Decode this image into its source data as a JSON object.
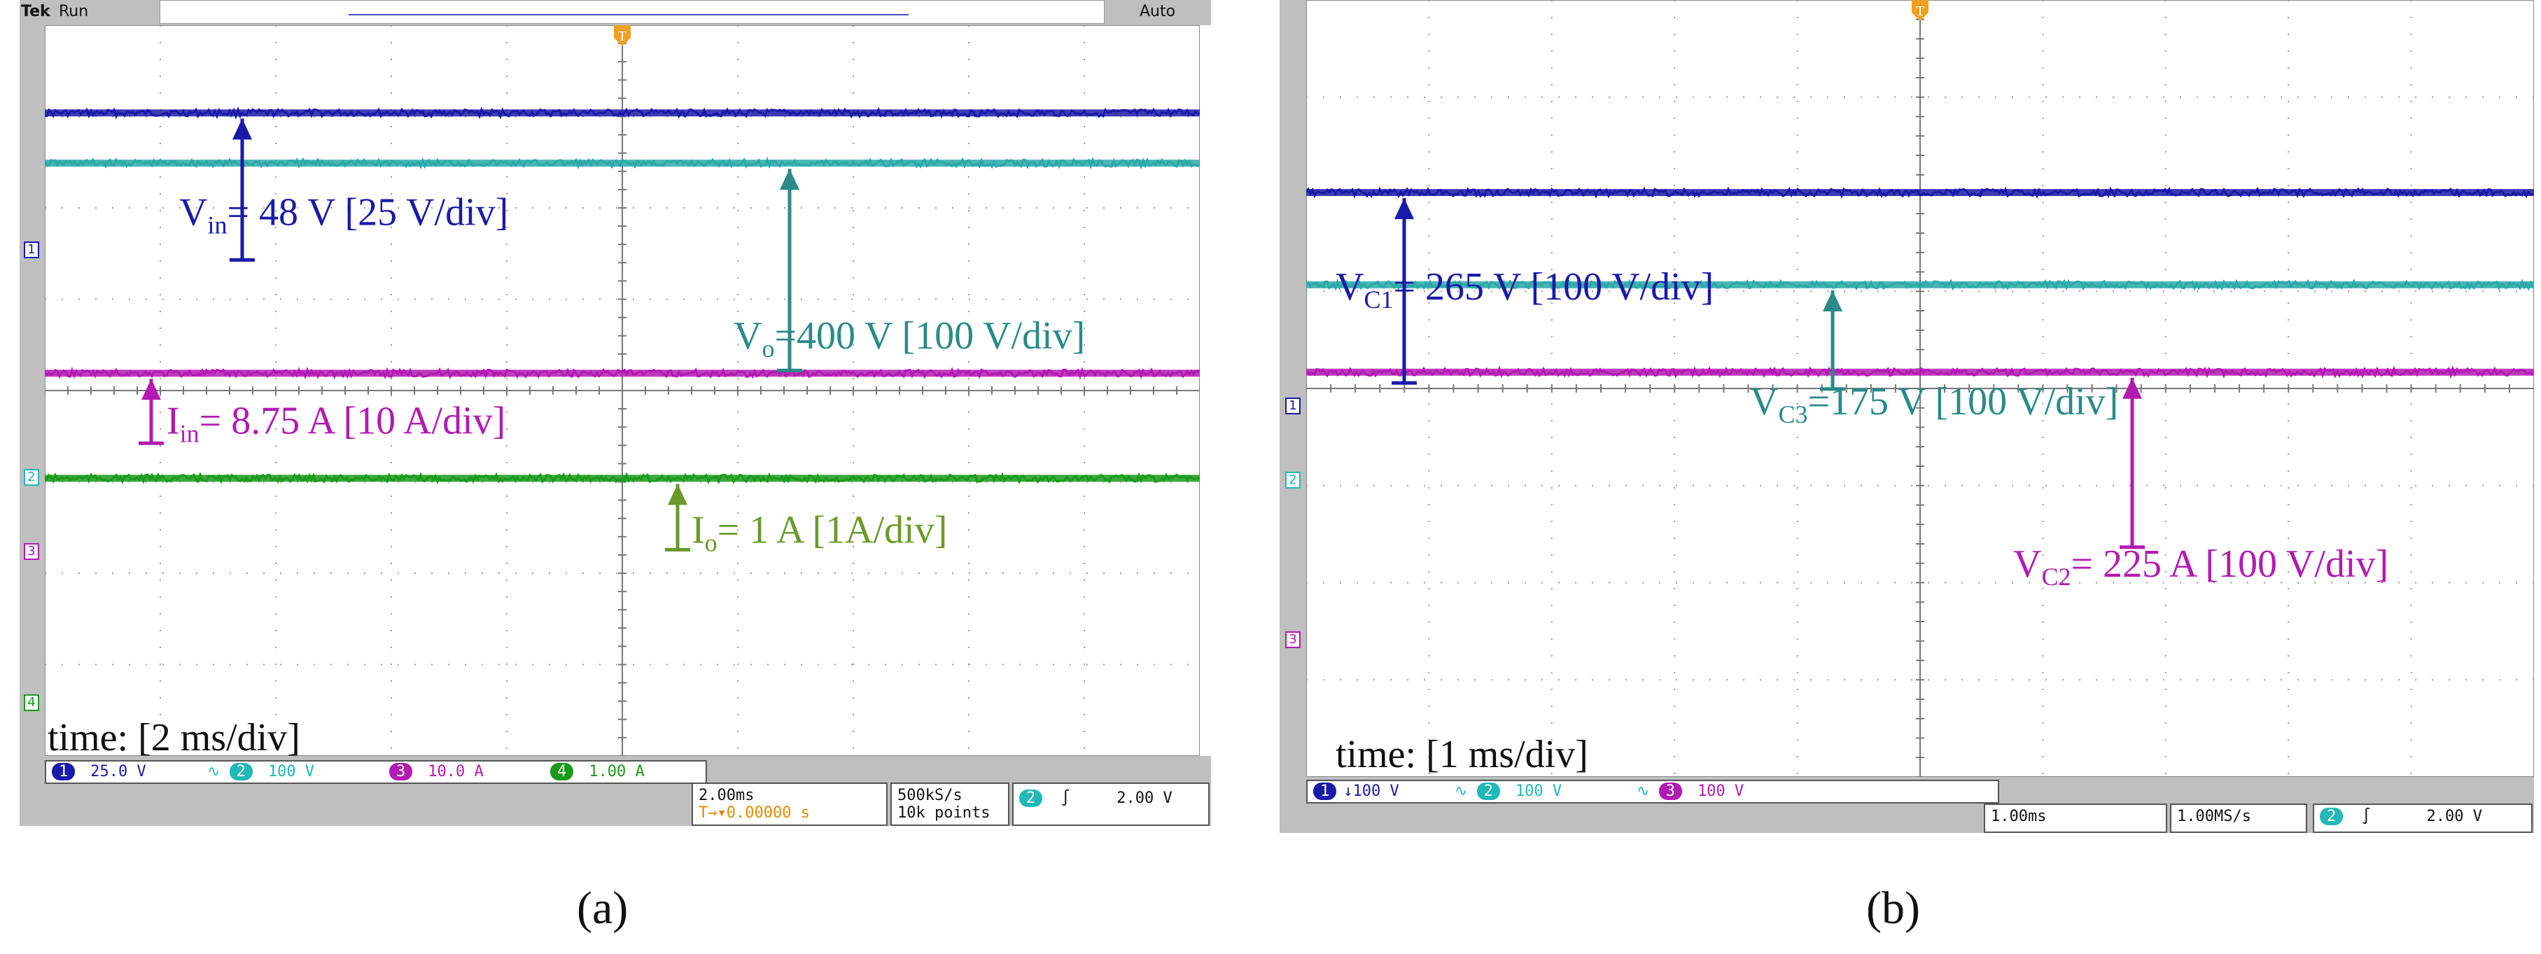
{
  "panels": [
    {
      "id": "a",
      "panel_label": "(a)",
      "status": {
        "tek": "Tek",
        "run": "Run",
        "mode": "Auto"
      },
      "time_label": "time: [2 ms/div]",
      "channel_readouts": [
        {
          "ch": "1",
          "value": "25.0 V",
          "color": "#1a1aa8"
        },
        {
          "ch": "2",
          "value": "100 V",
          "color": "#22b8b8"
        },
        {
          "ch": "3",
          "value": "10.0 A",
          "color": "#b21ab2"
        },
        {
          "ch": "4",
          "value": "1.00 A",
          "color": "#1a9a1a"
        }
      ],
      "timebase": {
        "line1": "2.00ms",
        "line2": "0.00000 s"
      },
      "sample": {
        "line1": "500kS/s",
        "line2": "10k points"
      },
      "trigger": {
        "ch": "2",
        "level": "2.00 V"
      },
      "traces": [
        {
          "name": "Vin",
          "color": "#1a1aa8",
          "divs_from_top": 0.7
        },
        {
          "name": "Vo",
          "color": "#2aa8a8",
          "divs_from_top": 1.25
        },
        {
          "name": "Iin",
          "color": "#b21ab2",
          "divs_from_top": 3.55
        },
        {
          "name": "Io",
          "color": "#1a9a1a",
          "divs_from_top": 4.7
        }
      ],
      "annotations": [
        {
          "main": "V",
          "sub": "in",
          "rest": "= 48 V [25 V/div]",
          "color": "#1a1aa8"
        },
        {
          "main": "V",
          "sub": "o",
          "rest": "=400 V [100 V/div]",
          "color": "#2a8a8a"
        },
        {
          "main": "I",
          "sub": "in",
          "rest": "= 8.75 A [10 A/div]",
          "color": "#b21ab2"
        },
        {
          "main": "I",
          "sub": "o",
          "rest": "= 1 A [1A/div]",
          "color": "#6a9a2a"
        }
      ]
    },
    {
      "id": "b",
      "panel_label": "(b)",
      "time_label": "time: [1 ms/div]",
      "channel_readouts": [
        {
          "ch": "1",
          "value": "100 V",
          "color": "#1a1aa8"
        },
        {
          "ch": "2",
          "value": "100 V",
          "color": "#22b8b8"
        },
        {
          "ch": "3",
          "value": "100 V",
          "color": "#b21ab2"
        }
      ],
      "timebase": {
        "line1": "1.00ms",
        "line2": ""
      },
      "sample": {
        "line1": "1.00MS/s",
        "line2": ""
      },
      "trigger": {
        "ch": "2",
        "level": "2.00 V"
      },
      "traces": [
        {
          "name": "VC1",
          "color": "#1a1aa8",
          "divs_from_top": 1.55
        },
        {
          "name": "VC3",
          "color": "#2aa8a8",
          "divs_from_top": 2.5
        },
        {
          "name": "VC2",
          "color": "#b21ab2",
          "divs_from_top": 3.4
        }
      ],
      "annotations": [
        {
          "main": "V",
          "sub": "C1",
          "rest": "= 265 V [100 V/div]",
          "color": "#1a1aa8"
        },
        {
          "main": "V",
          "sub": "C3",
          "rest": "=175 V [100 V/div]",
          "color": "#2a8a8a"
        },
        {
          "main": "V",
          "sub": "C2",
          "rest": "= 225 A [100 V/div]",
          "color": "#b21ab2"
        }
      ]
    }
  ]
}
